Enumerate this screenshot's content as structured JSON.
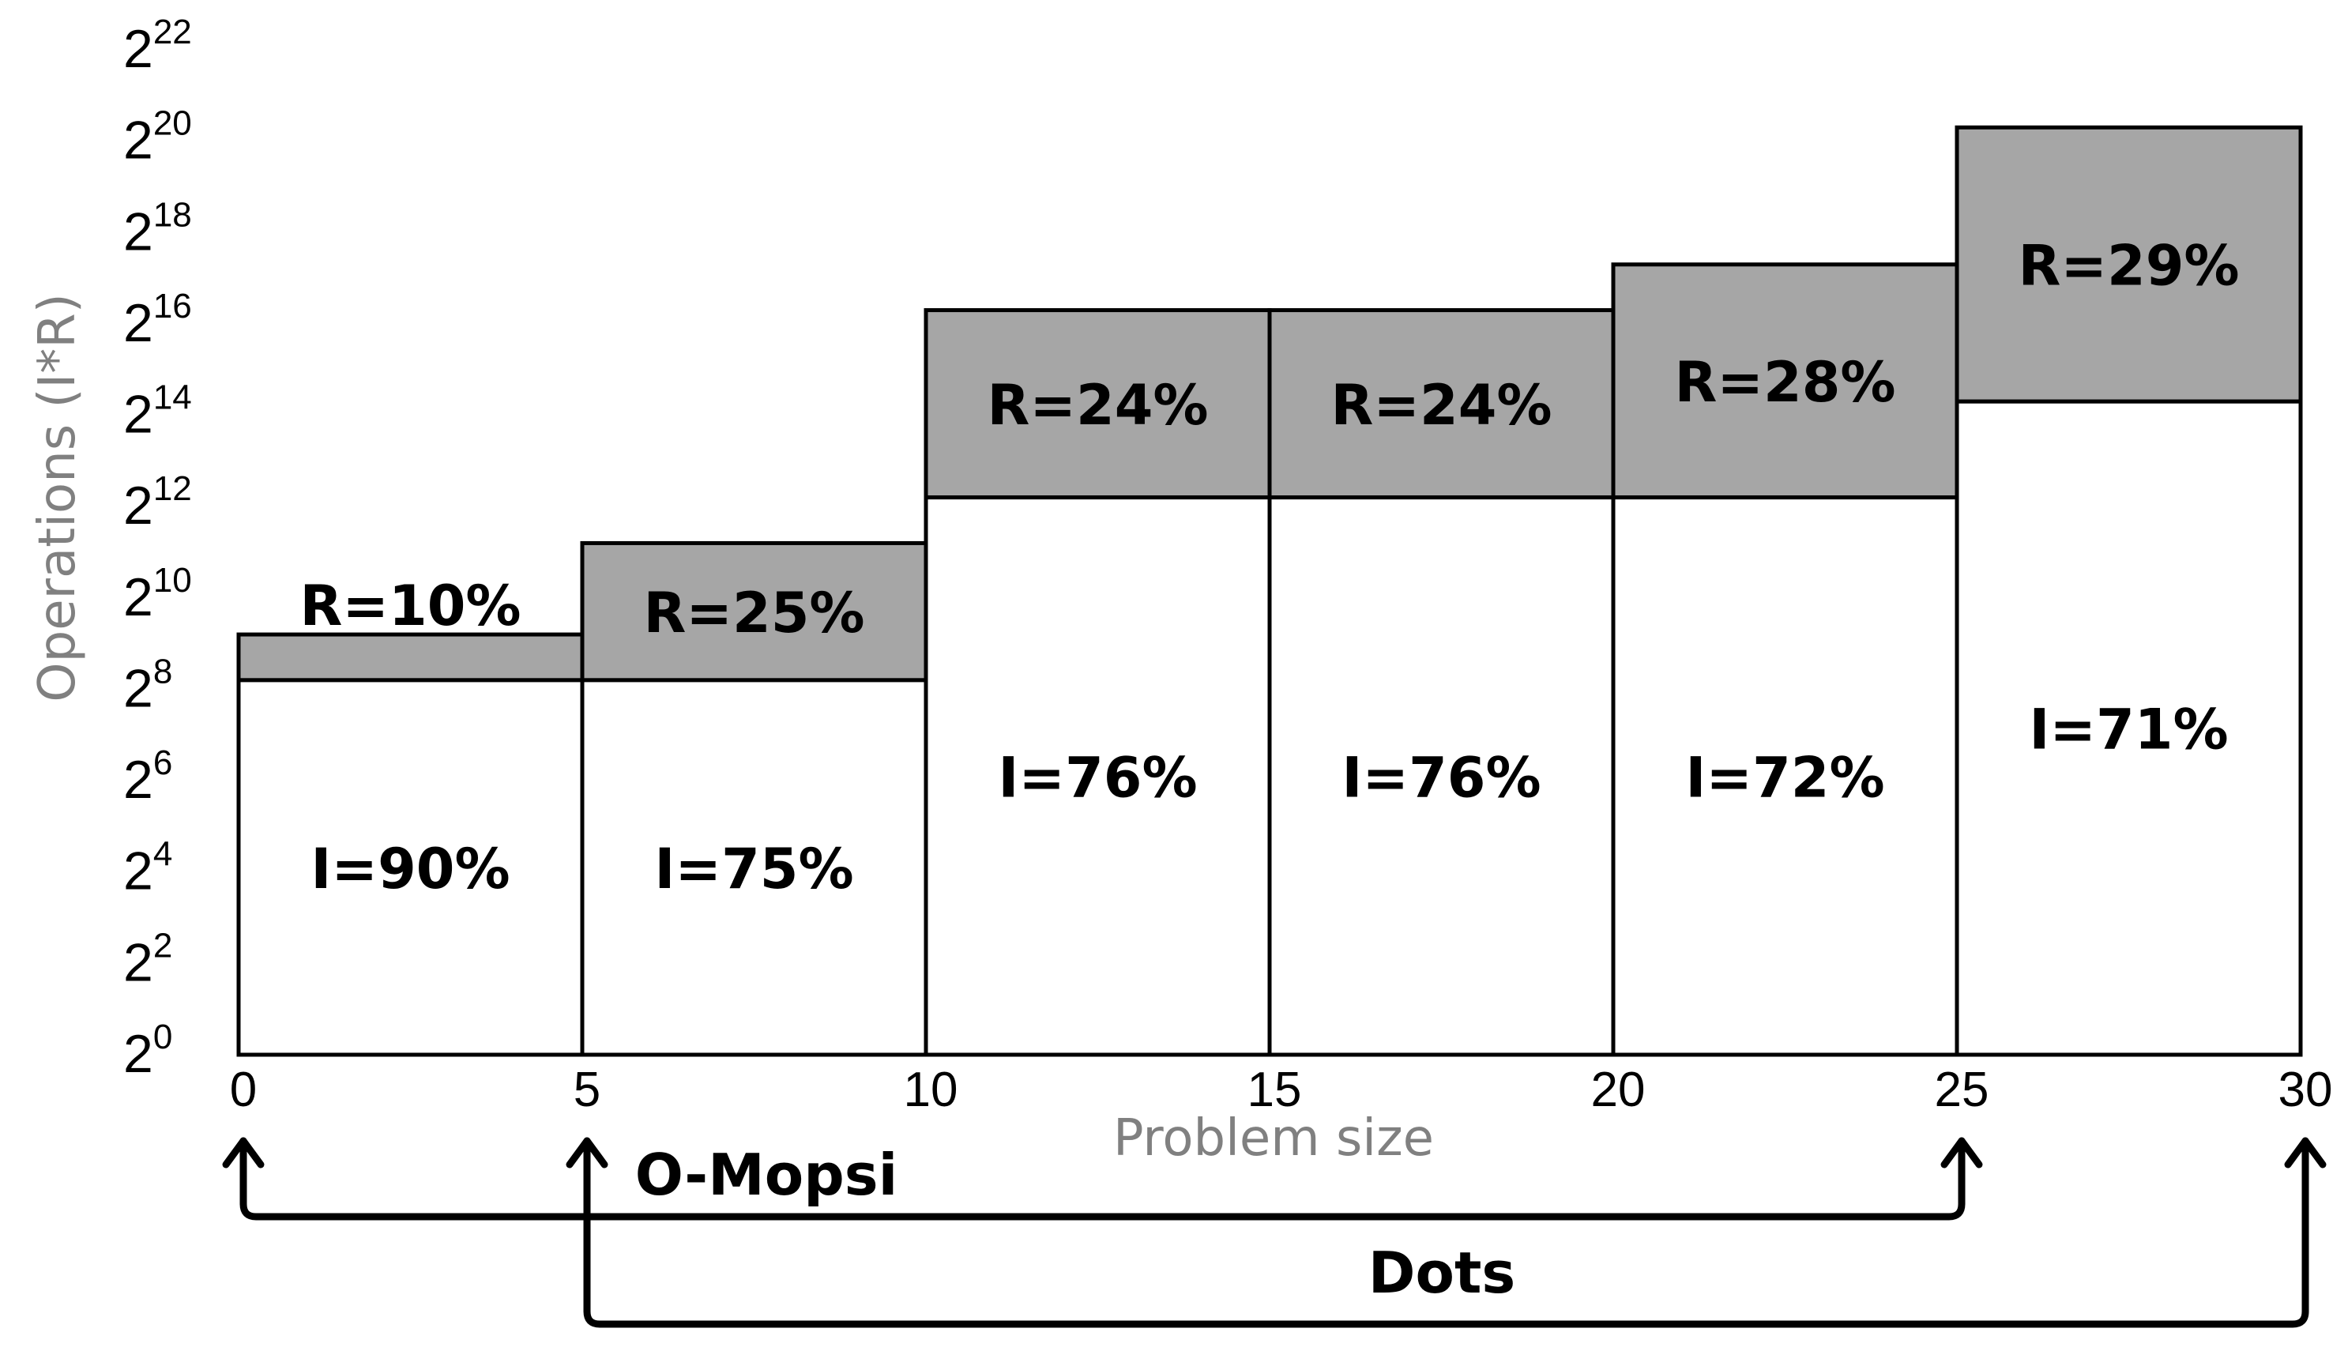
{
  "chart_data": {
    "type": "bar",
    "xlabel": "Problem size",
    "ylabel": "Operations (I*R)",
    "x_ticks": [
      "0",
      "5",
      "10",
      "15",
      "20",
      "25",
      "30"
    ],
    "xlim": [
      0,
      30
    ],
    "y_scale": "log2",
    "y_tick_exponents": [
      "0",
      "2",
      "4",
      "6",
      "8",
      "10",
      "12",
      "14",
      "16",
      "18",
      "20",
      "22"
    ],
    "ylim_exponent": [
      0,
      22
    ],
    "bars": [
      {
        "x0": 0,
        "x1": 5,
        "i_top_exp": 8.2,
        "r_top_exp": 9.2,
        "i_label": "I=90%",
        "r_label": "R=10%"
      },
      {
        "x0": 5,
        "x1": 10,
        "i_top_exp": 8.2,
        "r_top_exp": 11.2,
        "i_label": "I=75%",
        "r_label": "R=25%"
      },
      {
        "x0": 10,
        "x1": 15,
        "i_top_exp": 12.2,
        "r_top_exp": 16.3,
        "i_label": "I=76%",
        "r_label": "R=24%"
      },
      {
        "x0": 15,
        "x1": 20,
        "i_top_exp": 12.2,
        "r_top_exp": 16.3,
        "i_label": "I=76%",
        "r_label": "R=24%"
      },
      {
        "x0": 20,
        "x1": 25,
        "i_top_exp": 12.2,
        "r_top_exp": 17.3,
        "i_label": "I=72%",
        "r_label": "R=28%"
      },
      {
        "x0": 25,
        "x1": 30,
        "i_top_exp": 14.3,
        "r_top_exp": 20.3,
        "i_label": "I=71%",
        "r_label": "R=29%"
      }
    ],
    "ranges": [
      {
        "name": "O-Mopsi",
        "from": 0,
        "to": 25
      },
      {
        "name": "Dots",
        "from": 5,
        "to": 30
      }
    ],
    "colors": {
      "r_fill": "#a6a6a6",
      "i_fill": "#ffffff",
      "stroke": "#000000",
      "axis_title": "#808080"
    }
  }
}
